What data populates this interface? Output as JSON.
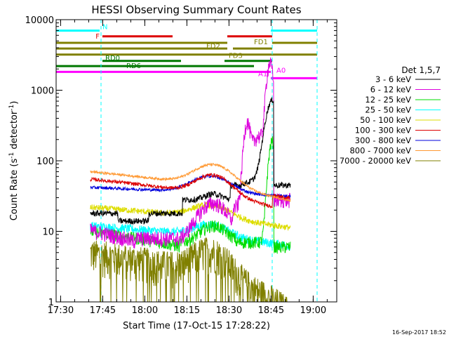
{
  "chart_data": {
    "type": "line",
    "title": "HESSI Observing Summary Count Rates",
    "xlabel": "Start Time (17-Oct-15 17:28:22)",
    "ylabel_main": "Count Rate (s",
    "ylabel_sup1": "-1",
    "ylabel_mid": " detector",
    "ylabel_sup2": "-1",
    "ylabel_end": ")",
    "x_unit": "minutes since 17:28:22",
    "xlim": [
      0,
      100
    ],
    "ylim": [
      1,
      10000
    ],
    "log_y": true,
    "x_ticks": [
      {
        "value": 1.6,
        "label": "17:30"
      },
      {
        "value": 16.6,
        "label": "17:45"
      },
      {
        "value": 31.6,
        "label": "18:00"
      },
      {
        "value": 46.6,
        "label": "18:15"
      },
      {
        "value": 61.6,
        "label": "18:30"
      },
      {
        "value": 76.6,
        "label": "18:45"
      },
      {
        "value": 91.6,
        "label": "19:00"
      }
    ],
    "y_ticks": [
      {
        "value": 1,
        "label": "1"
      },
      {
        "value": 10,
        "label": "10"
      },
      {
        "value": 100,
        "label": "100"
      },
      {
        "value": 1000,
        "label": "1000"
      },
      {
        "value": 10000,
        "label": "10000"
      }
    ],
    "legend_title": "Det 1,5,7",
    "legend_placement": "right",
    "series": [
      {
        "name": "3 - 6 keV",
        "color": "#000000"
      },
      {
        "name": "6 - 12 keV",
        "color": "#dd00dd"
      },
      {
        "name": "12 - 25 keV",
        "color": "#00dd00"
      },
      {
        "name": "25 - 50 keV",
        "color": "#00ffff"
      },
      {
        "name": "50 - 100 keV",
        "color": "#dddd00"
      },
      {
        "name": "100 - 300 keV",
        "color": "#dd0000"
      },
      {
        "name": "300 - 800 keV",
        "color": "#0000dd"
      },
      {
        "name": "800 - 7000 keV",
        "color": "#ff9933"
      },
      {
        "name": "7000 - 20000 keV",
        "color": "#808000"
      }
    ],
    "flags": [
      {
        "label": "N",
        "color": "#00ffff",
        "segments": [
          [
            0,
            15.5
          ],
          [
            76.5,
            93
          ]
        ],
        "y": 7000
      },
      {
        "label": "F",
        "color": "#dd0000",
        "segments": [
          [
            16.5,
            41.5
          ],
          [
            61,
            77
          ]
        ],
        "y": 5800
      },
      {
        "label": "FD1",
        "color": "#808000",
        "segments": [
          [
            0,
            61
          ],
          [
            77,
            93
          ]
        ],
        "y": 4700
      },
      {
        "label": "FD2",
        "color": "#808000",
        "segments": [
          [
            0,
            61
          ],
          [
            63,
            77
          ]
        ],
        "y": 3900
      },
      {
        "label": "FD3",
        "color": "#808000",
        "segments": [
          [
            0,
            93
          ]
        ],
        "y": 3200
      },
      {
        "label": "RD0",
        "color": "#007700",
        "segments": [
          [
            16.5,
            44.5
          ],
          [
            60,
            77
          ]
        ],
        "y": 2600
      },
      {
        "label": "RD6",
        "color": "#007700",
        "segments": [
          [
            0,
            44.5
          ],
          [
            44.5,
            70.5
          ]
        ],
        "y": 2200
      },
      {
        "label": "A1",
        "color": "#ff00ff",
        "segments": [
          [
            0,
            76.5
          ]
        ],
        "y": 1820
      },
      {
        "label": "A0",
        "color": "#ff00ff",
        "segments": [
          [
            76.5,
            93
          ]
        ],
        "y": 1480
      }
    ],
    "dashed_lines_x": [
      0,
      16,
      77,
      93
    ],
    "footer_date": "16-Sep-2017 18:52"
  }
}
